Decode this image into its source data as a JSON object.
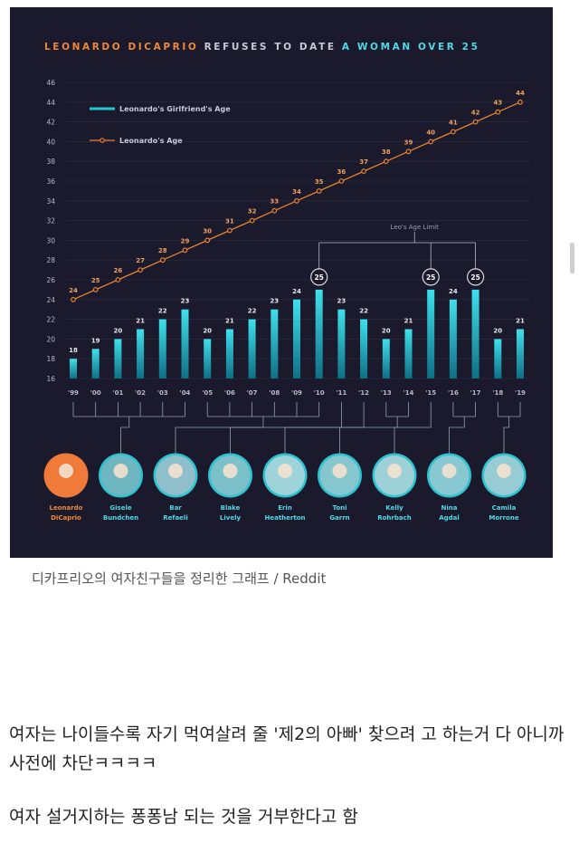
{
  "chart_data": {
    "type": "bar",
    "title_parts": [
      "LEONARDO DICAPRIO",
      "REFUSES TO DATE",
      "A WOMAN OVER 25"
    ],
    "categories": [
      "'99",
      "'00",
      "'01",
      "'02",
      "'03",
      "'04",
      "'05",
      "'06",
      "'07",
      "'08",
      "'09",
      "'10",
      "'11",
      "'12",
      "'13",
      "'14",
      "'15",
      "'16",
      "'17",
      "'18",
      "'19"
    ],
    "ylim": [
      16,
      46
    ],
    "yticks": [
      16,
      18,
      20,
      22,
      24,
      26,
      28,
      30,
      32,
      34,
      36,
      38,
      40,
      42,
      44,
      46
    ],
    "series": [
      {
        "name": "Leonardo's Girlfriend's Age",
        "type": "bar",
        "values": [
          18,
          19,
          20,
          21,
          22,
          23,
          20,
          21,
          22,
          23,
          24,
          25,
          23,
          22,
          20,
          21,
          25,
          24,
          25,
          20,
          21
        ]
      },
      {
        "name": "Leonardo's Age",
        "type": "line",
        "values": [
          24,
          25,
          26,
          27,
          28,
          29,
          30,
          31,
          32,
          33,
          34,
          35,
          36,
          37,
          38,
          39,
          40,
          41,
          42,
          43,
          44
        ]
      }
    ],
    "age_limit_label": "Leo's Age Limit",
    "age_limit_value": "25",
    "circled_categories": [
      "'10",
      "'15",
      "'17"
    ],
    "colors": {
      "background": "#1a1a2c",
      "bar": "#29c5d4",
      "line": "#e8832f",
      "title_orange": "#f0883a",
      "title_cyan": "#4fd8e6",
      "grid": "#2e2e44"
    },
    "people": [
      {
        "name1": "Leonardo",
        "name2": "DiCaprio",
        "color": "#f07a3a",
        "ring": "#f07a3a",
        "years": []
      },
      {
        "name1": "Gisele",
        "name2": "Bundchen",
        "color": "#6fb7c0",
        "ring": "#2fc2d0",
        "years": [
          "'99",
          "'00",
          "'01",
          "'02",
          "'03",
          "'04"
        ]
      },
      {
        "name1": "Bar",
        "name2": "Refaeli",
        "color": "#8fbfca",
        "ring": "#2fc2d0",
        "years": [
          "'05",
          "'06",
          "'07",
          "'08",
          "'09",
          "'10"
        ]
      },
      {
        "name1": "Blake",
        "name2": "Lively",
        "color": "#7cc0c9",
        "ring": "#2fc2d0",
        "years": [
          "'11"
        ]
      },
      {
        "name1": "Erin",
        "name2": "Heatherton",
        "color": "#9fd3da",
        "ring": "#2fc2d0",
        "years": [
          "'12"
        ]
      },
      {
        "name1": "Toni",
        "name2": "Garrn",
        "color": "#86c6cf",
        "ring": "#2fc2d0",
        "years": [
          "'13",
          "'14"
        ]
      },
      {
        "name1": "Kelly",
        "name2": "Rohrbach",
        "color": "#9ed0d8",
        "ring": "#2fc2d0",
        "years": [
          "'15"
        ]
      },
      {
        "name1": "Nina",
        "name2": "Agdal",
        "color": "#88c8d1",
        "ring": "#2fc2d0",
        "years": [
          "'16",
          "'17"
        ]
      },
      {
        "name1": "Camila",
        "name2": "Morrone",
        "color": "#98ccd4",
        "ring": "#2fc2d0",
        "years": [
          "'18",
          "'19"
        ]
      }
    ]
  },
  "caption": "디카프리오의 여자친구들을 정리한 그래프 / Reddit",
  "paragraph1": "여자는 나이들수록 자기 먹여살려 줄 '제2의 아빠' 찾으려 고 하는거 다 아니까 사전에 차단ㅋㅋㅋㅋ",
  "paragraph2": "여자 설거지하는 퐁퐁남 되는 것을 거부한다고 함"
}
